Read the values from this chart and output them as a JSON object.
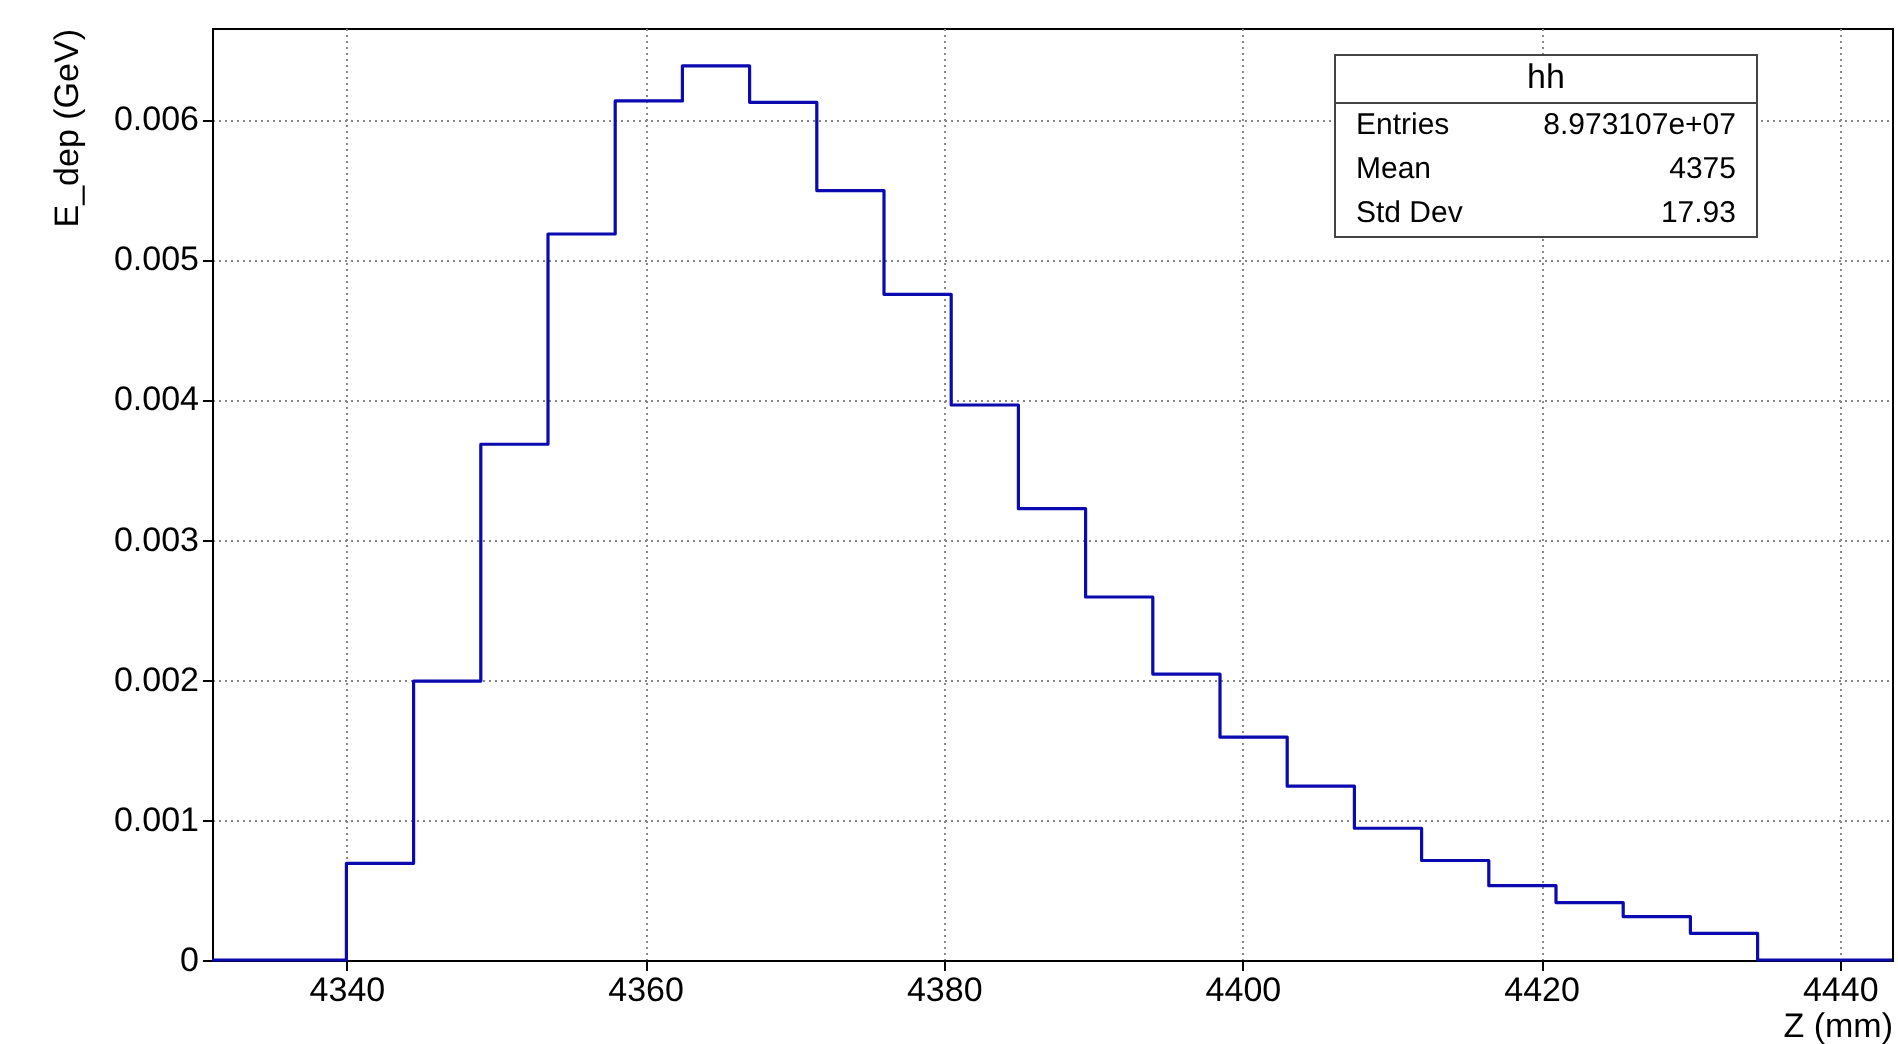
{
  "chart_data": {
    "type": "histogram",
    "xlabel": "Z (mm)",
    "ylabel": "E_dep (GeV)",
    "bins": [
      4331,
      4335.5,
      4340,
      4344.5,
      4349,
      4353.5,
      4358,
      4362.5,
      4367,
      4371.5,
      4376,
      4380.5,
      4385,
      4389.5,
      4394,
      4398.5,
      4403,
      4407.5,
      4412,
      4416.5,
      4421,
      4425.5,
      4430,
      4434.5,
      4439,
      4443.5
    ],
    "values": [
      0,
      0,
      0.00069,
      0.00199,
      0.00368,
      0.00518,
      0.00613,
      0.00638,
      0.00612,
      0.00549,
      0.00475,
      0.00396,
      0.00322,
      0.00259,
      0.00204,
      0.00159,
      0.00124,
      0.00094,
      0.00071,
      0.00053,
      0.00041,
      0.00031,
      0.00019,
      0,
      0
    ],
    "color": "#0a0ab0",
    "xlim": [
      4331,
      4443.5
    ],
    "xticks": [
      4340,
      4360,
      4380,
      4400,
      4420,
      4440
    ],
    "ylim": [
      0,
      0.00665
    ],
    "yticks": [
      0,
      0.001,
      0.002,
      0.003,
      0.004,
      0.005,
      0.006
    ],
    "grid": true,
    "annotations": [
      "hh",
      "Entries",
      "8.973107e+07",
      "Mean",
      "4375",
      "Std Dev",
      "17.93"
    ]
  }
}
